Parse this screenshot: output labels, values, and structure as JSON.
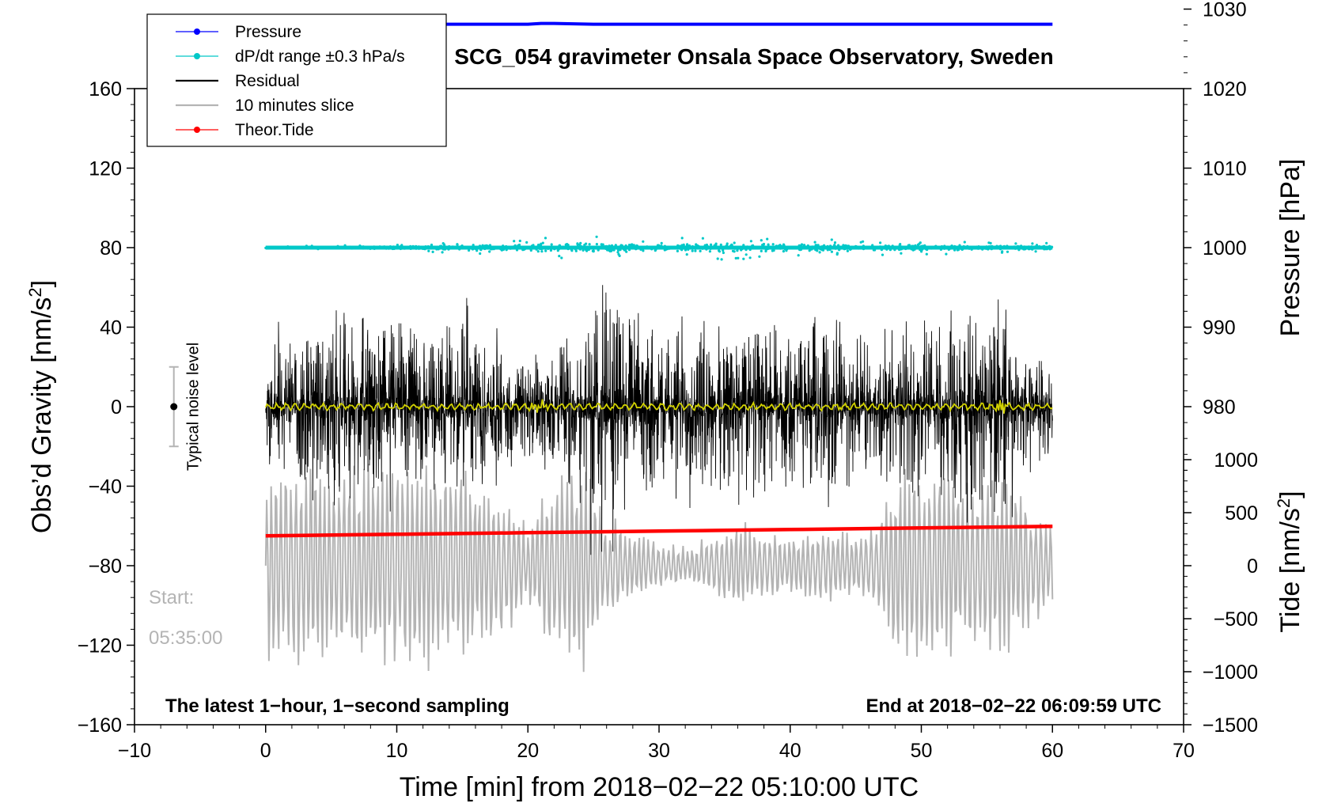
{
  "chart_data": {
    "type": "line",
    "title": "SCG_054 gravimeter Onsala Space Observatory, Sweden",
    "xlabel": "Time [min] from 2018−02−22 05:10:00 UTC",
    "ylabel_left": "Obs’d Gravity [nm/s",
    "ylabel_left_sup": "2",
    "ylabel_left_end": "]",
    "ylabel_right_top": "Pressure [hPa]",
    "ylabel_right_bottom": "Tide [nm/s",
    "ylabel_right_bottom_sup": "2",
    "ylabel_right_bottom_end": "]",
    "xlim": [
      -10,
      70
    ],
    "ylim": [
      -160,
      160
    ],
    "x_ticks": [
      -10,
      0,
      10,
      20,
      30,
      40,
      50,
      60,
      70
    ],
    "x_tick_labels": [
      "−10",
      "0",
      "10",
      "20",
      "30",
      "40",
      "50",
      "60",
      "70"
    ],
    "y_ticks": [
      -160,
      -120,
      -80,
      -40,
      0,
      40,
      80,
      120,
      160
    ],
    "y_tick_labels": [
      "−160",
      "−120",
      "−80",
      "−40",
      "0",
      "40",
      "80",
      "120",
      "160"
    ],
    "pressure_axis": {
      "range": [
        970,
        1030
      ],
      "ticks": [
        980,
        990,
        1000,
        1010,
        1020,
        1030
      ],
      "tick_labels": [
        "980",
        "990",
        "1000",
        "1010",
        "1020",
        "1030"
      ]
    },
    "tide_axis": {
      "range": [
        -1500,
        1500
      ],
      "ticks": [
        -1500,
        -1000,
        -500,
        0,
        500,
        1000
      ],
      "tick_labels": [
        "−1500",
        "−1000",
        "−500",
        "0",
        "500",
        "1000"
      ]
    },
    "legend": [
      {
        "label": "Pressure",
        "color": "#0000ff",
        "marker": "dot"
      },
      {
        "label": "dP/dt range ±0.3 hPa/s",
        "color": "#00c8c8",
        "marker": "dot"
      },
      {
        "label": "Residual",
        "color": "#000000",
        "marker": "line"
      },
      {
        "label": "10 minutes slice",
        "color": "#b4b4b4",
        "marker": "line"
      },
      {
        "label": "Theor.Tide",
        "color": "#ff0000",
        "marker": "dot"
      }
    ],
    "series": [
      {
        "name": "Pressure",
        "axis": "pressure",
        "color": "#0000ff",
        "x": [
          0,
          20,
          21,
          22,
          25,
          30,
          45,
          60
        ],
        "values": [
          1028.1,
          1028.1,
          1028.2,
          1028.2,
          1028.1,
          1028.1,
          1028.1,
          1028.1
        ]
      },
      {
        "name": "dP/dt range ±0.3 hPa/s",
        "axis": "left",
        "color": "#00c8c8",
        "x": [
          0,
          60
        ],
        "values": [
          80,
          80
        ],
        "scatter": [
          0.3,
          0.6,
          1.0,
          1.6,
          2.6,
          3.2,
          2.4,
          3.4,
          2.8,
          2.0,
          2.2,
          1.4
        ]
      },
      {
        "name": "Residual",
        "axis": "left",
        "color": "#000000",
        "envelope_x": [
          0,
          2,
          4,
          6,
          8,
          10,
          12,
          14,
          16,
          18,
          20,
          22,
          24,
          25,
          26,
          27,
          28,
          30,
          32,
          34,
          36,
          38,
          40,
          42,
          44,
          46,
          48,
          50,
          52,
          54,
          56,
          58,
          60
        ],
        "envelope_amp": [
          30,
          38,
          40,
          45,
          40,
          42,
          36,
          45,
          40,
          30,
          25,
          28,
          40,
          70,
          62,
          58,
          40,
          35,
          45,
          40,
          45,
          38,
          36,
          40,
          38,
          34,
          36,
          40,
          45,
          40,
          55,
          30,
          25
        ],
        "smooth_color": "#d2d200"
      },
      {
        "name": "10 minutes slice",
        "axis": "tide",
        "color": "#b4b4b4",
        "envelope_x": [
          0,
          3,
          6,
          9,
          12,
          15,
          18,
          20,
          22,
          24,
          26,
          28,
          30,
          32,
          34,
          36,
          38,
          40,
          42,
          44,
          46,
          48,
          50,
          52,
          54,
          56,
          58,
          60
        ],
        "envelope_amp": [
          900,
          1100,
          1000,
          1000,
          1100,
          1000,
          700,
          400,
          950,
          1100,
          500,
          350,
          250,
          200,
          300,
          450,
          350,
          300,
          400,
          350,
          300,
          950,
          900,
          1000,
          800,
          950,
          650,
          500
        ]
      },
      {
        "name": "Theor.Tide",
        "axis": "left",
        "color": "#ff0000",
        "x": [
          0,
          10,
          20,
          30,
          40,
          50,
          60
        ],
        "values": [
          -65,
          -64.2,
          -63.4,
          -62.6,
          -61.8,
          -61,
          -60.2
        ]
      }
    ],
    "noise_bar": {
      "label": "Typical noise level",
      "x": -7,
      "center": 0,
      "half_range": 20
    },
    "annotations": {
      "start_label": "Start:",
      "start_time": "05:35:00",
      "bottom_left_note": "The latest 1−hour, 1−second sampling",
      "bottom_right_note": "End at 2018−02−22 06:09:59 UTC"
    }
  }
}
